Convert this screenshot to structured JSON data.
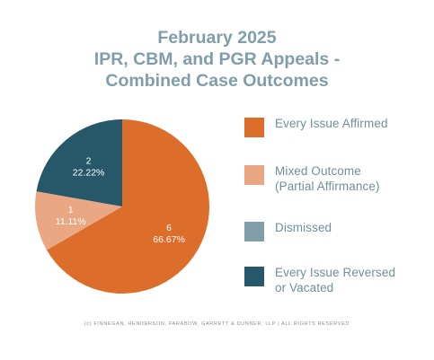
{
  "title": {
    "line1": "February 2025",
    "line2": "IPR, CBM, and PGR Appeals -",
    "line3": "Combined Case Outcomes"
  },
  "footer": "(c) FINNEGAN, HENDERSON, FARABOW, GARRETT & DUNNER, LLP | ALL RIGHTS RESERVED",
  "chart_data": {
    "type": "pie",
    "title": "February 2025 IPR, CBM, and PGR Appeals - Combined Case Outcomes",
    "legend_position": "right",
    "slices": [
      {
        "name": "Every Issue Affirmed",
        "value": 6,
        "percent_label": "66.67%",
        "color": "#dc6d2b"
      },
      {
        "name": "Mixed Outcome (Partial Affirmance)",
        "value": 1,
        "percent_label": "11.11%",
        "color": "#eaa783"
      },
      {
        "name": "Dismissed",
        "value": 0,
        "percent_label": "",
        "color": "#7f9ea9"
      },
      {
        "name": "Every Issue Reversed or Vacated",
        "value": 2,
        "percent_label": "22.22%",
        "color": "#265869"
      }
    ]
  },
  "legend": [
    {
      "line1": "Every Issue Affirmed",
      "line2": ""
    },
    {
      "line1": "Mixed Outcome",
      "line2": "(Partial Affirmance)"
    },
    {
      "line1": "Dismissed",
      "line2": ""
    },
    {
      "line1": "Every Issue Reversed",
      "line2": "or Vacated"
    }
  ]
}
